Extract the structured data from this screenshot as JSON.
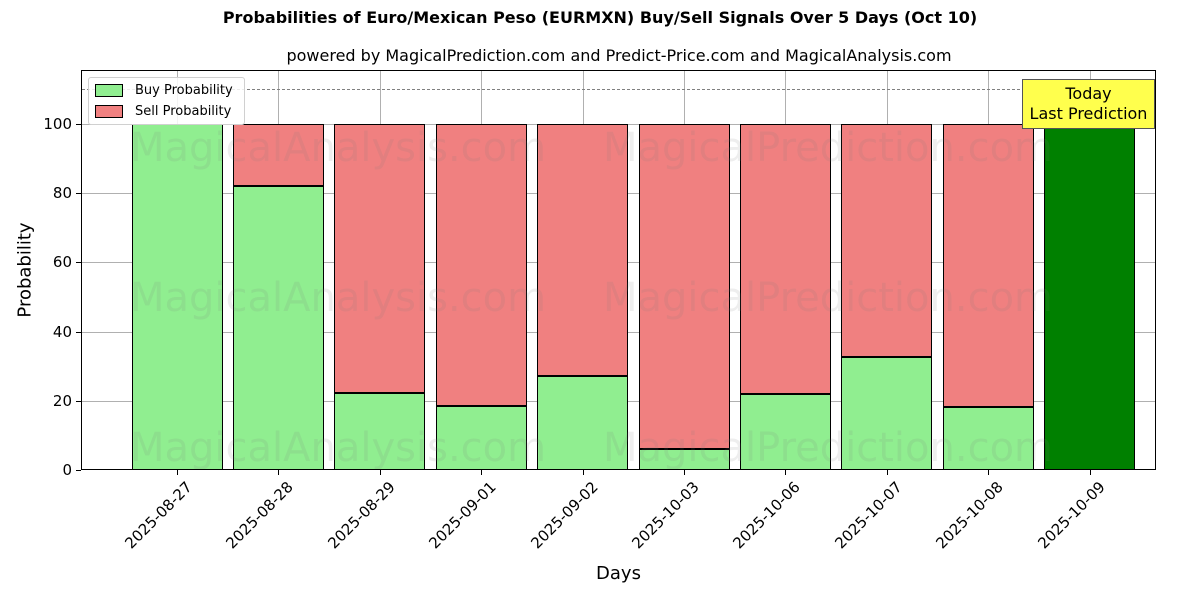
{
  "chart_data": {
    "type": "bar",
    "stacked": true,
    "title": "Probabilities of Euro/Mexican Peso (EURMXN) Buy/Sell Signals Over 5 Days (Oct 10)",
    "subtitle": "powered by MagicalPrediction.com and Predict-Price.com and MagicalAnalysis.com",
    "xlabel": "Days",
    "ylabel": "Probability",
    "ylim": [
      0,
      115
    ],
    "yticks": [
      0,
      20,
      40,
      60,
      80,
      100
    ],
    "grid": true,
    "legend_position": "upper left",
    "categories": [
      "2025-08-27",
      "2025-08-28",
      "2025-08-29",
      "2025-09-01",
      "2025-09-02",
      "2025-10-03",
      "2025-10-06",
      "2025-10-07",
      "2025-10-08",
      "2025-10-09"
    ],
    "series": [
      {
        "name": "Buy Probability",
        "color": "#90ee90",
        "values": [
          100,
          82,
          22.3,
          18.5,
          27.2,
          6.1,
          22,
          32.7,
          18.2,
          100
        ]
      },
      {
        "name": "Sell Probability",
        "color": "#f08080",
        "values": [
          0,
          18,
          77.7,
          81.5,
          72.8,
          93.9,
          78,
          67.3,
          81.8,
          0
        ]
      }
    ],
    "highlight": {
      "category": "2025-10-09",
      "color": "#008000"
    },
    "reference_line": {
      "y": 110,
      "style": "dashed",
      "color": "#808080"
    },
    "annotation": {
      "line1": "Today",
      "line2": "Last Prediction",
      "color": "#ffff4d"
    },
    "watermarks": [
      "MagicalAnalysis.com",
      "MagicalPrediction.com"
    ]
  }
}
